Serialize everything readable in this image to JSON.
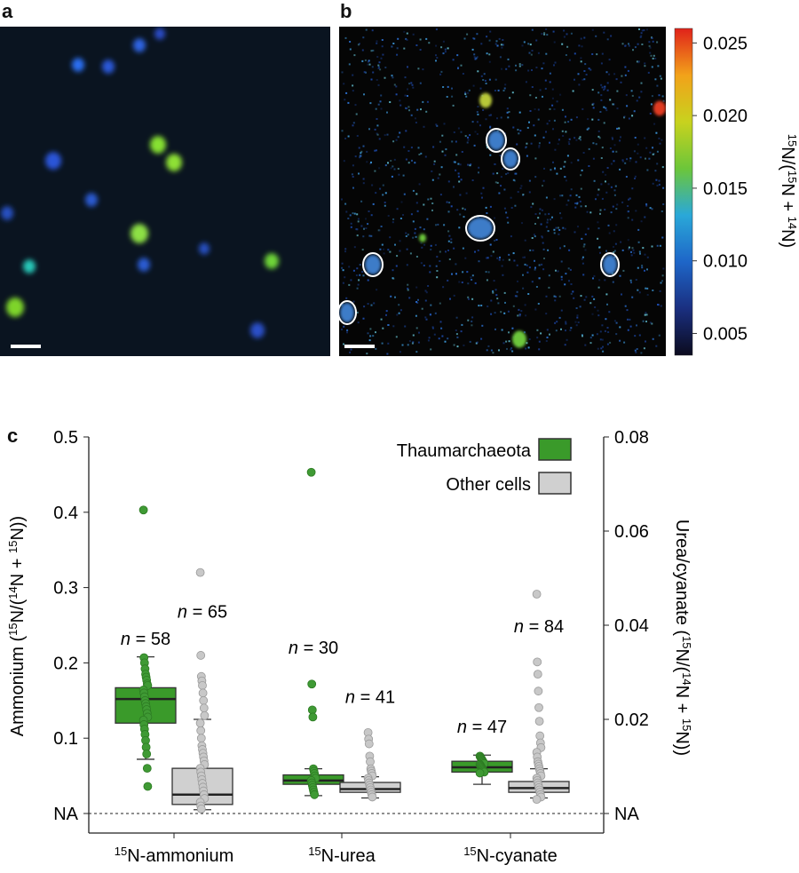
{
  "panel_labels": {
    "a": "a",
    "b": "b",
    "c": "c"
  },
  "colorbar": {
    "ticks": [
      "0.025",
      "0.020",
      "0.015",
      "0.010",
      "0.005"
    ],
    "tick_values": [
      0.025,
      0.02,
      0.015,
      0.01,
      0.005
    ],
    "range": [
      0.0035,
      0.026
    ],
    "label_parts": [
      "15",
      "N/(",
      "15",
      "N + ",
      "14",
      "N)"
    ],
    "colors": [
      "#0b0b1e",
      "#1a2f80",
      "#1e66c8",
      "#2aa8d8",
      "#6cc63a",
      "#c8d21e",
      "#f2a21a",
      "#e0221a"
    ]
  },
  "image_a": {
    "background": "#0a1420",
    "cells": [
      {
        "x": 17,
        "y": 346,
        "r": 10,
        "c": "#7ed42a"
      },
      {
        "x": 178,
        "y": 163,
        "r": 9,
        "c": "#86e030"
      },
      {
        "x": 196,
        "y": 183,
        "r": 9,
        "c": "#8ee036"
      },
      {
        "x": 157,
        "y": 263,
        "r": 10,
        "c": "#8de044"
      },
      {
        "x": 306,
        "y": 294,
        "r": 8,
        "c": "#6ed438"
      },
      {
        "x": 33,
        "y": 300,
        "r": 7,
        "c": "#28c8b8"
      },
      {
        "x": 88,
        "y": 73,
        "r": 7,
        "c": "#2b6ef2"
      },
      {
        "x": 122,
        "y": 75,
        "r": 7,
        "c": "#2a58d8"
      },
      {
        "x": 157,
        "y": 51,
        "r": 7,
        "c": "#2d63e2"
      },
      {
        "x": 60,
        "y": 181,
        "r": 9,
        "c": "#2a55d8"
      },
      {
        "x": 103,
        "y": 225,
        "r": 7,
        "c": "#2a5ad0"
      },
      {
        "x": 290,
        "y": 372,
        "r": 8,
        "c": "#2a4fc8"
      },
      {
        "x": 162,
        "y": 298,
        "r": 7,
        "c": "#2a5cd2"
      },
      {
        "x": 180,
        "y": 38,
        "r": 6,
        "c": "#2a4cc6"
      },
      {
        "x": 230,
        "y": 280,
        "r": 6,
        "c": "#2850c0"
      },
      {
        "x": 8,
        "y": 240,
        "r": 7,
        "c": "#2850c0"
      }
    ]
  },
  "image_b": {
    "background": "#050505",
    "outlined_cells": [
      {
        "x": 559,
        "y": 158,
        "rx": 9,
        "ry": 11
      },
      {
        "x": 575,
        "y": 179,
        "rx": 8,
        "ry": 10
      },
      {
        "x": 541,
        "y": 257,
        "rx": 14,
        "ry": 12
      },
      {
        "x": 420,
        "y": 298,
        "rx": 9,
        "ry": 11
      },
      {
        "x": 687,
        "y": 298,
        "rx": 8,
        "ry": 11
      },
      {
        "x": 391,
        "y": 352,
        "rx": 8,
        "ry": 11
      }
    ],
    "hot_spots": [
      {
        "x": 743,
        "y": 122,
        "r": 7,
        "c": "#e03a20"
      },
      {
        "x": 547,
        "y": 113,
        "r": 7,
        "c": "#b8c838"
      },
      {
        "x": 585,
        "y": 382,
        "r": 8,
        "c": "#6cc63a"
      },
      {
        "x": 476,
        "y": 268,
        "r": 4,
        "c": "#6cc63a"
      }
    ]
  },
  "chart_data": {
    "type": "box",
    "left_axis": {
      "label_parts": [
        "Ammonium (",
        "15",
        "N/(",
        "14",
        "N + ",
        "15",
        "N))"
      ],
      "ticks": [
        "0.5",
        "0.4",
        "0.3",
        "0.2",
        "0.1",
        "NA"
      ],
      "tick_values": [
        0.5,
        0.4,
        0.3,
        0.2,
        0.1,
        0.0
      ],
      "ylim": [
        0.0,
        0.5
      ]
    },
    "right_axis": {
      "label_parts": [
        "Urea/cyanate (",
        "15",
        "N/(",
        "14",
        "N + ",
        "15",
        "N))"
      ],
      "ticks": [
        "0.08",
        "0.06",
        "0.04",
        "0.02",
        "NA"
      ],
      "tick_values": [
        0.08,
        0.06,
        0.04,
        0.02,
        0.0
      ],
      "ylim": [
        0.0,
        0.08
      ]
    },
    "categories": [
      {
        "sup": "15",
        "label": "N-ammonium"
      },
      {
        "sup": "15",
        "label": "N-urea"
      },
      {
        "sup": "15",
        "label": "N-cyanate"
      }
    ],
    "series": [
      {
        "name": "Thaumarchaeota",
        "color": "#3a9a2a",
        "point_color": "#3f9a34"
      },
      {
        "name": "Other cells",
        "color": "#d0d0d0",
        "point_color": "#c8c8c8"
      }
    ],
    "boxes": [
      {
        "category": 0,
        "series": 0,
        "axis": "left",
        "n_label": "= 58",
        "n": 58,
        "whisker_low": 0.072,
        "q1": 0.12,
        "median": 0.152,
        "q3": 0.167,
        "whisker_high": 0.208,
        "points": [
          0.403,
          0.207,
          0.2,
          0.192,
          0.185,
          0.181,
          0.177,
          0.172,
          0.17,
          0.164,
          0.16,
          0.155,
          0.15,
          0.146,
          0.142,
          0.138,
          0.133,
          0.128,
          0.124,
          0.118,
          0.112,
          0.105,
          0.097,
          0.088,
          0.079,
          0.06,
          0.036
        ]
      },
      {
        "category": 0,
        "series": 1,
        "axis": "left",
        "n_label": "= 65",
        "n": 65,
        "whisker_low": 0.005,
        "q1": 0.012,
        "median": 0.025,
        "q3": 0.06,
        "whisker_high": 0.125,
        "points": [
          0.32,
          0.21,
          0.182,
          0.176,
          0.17,
          0.16,
          0.15,
          0.14,
          0.13,
          0.12,
          0.11,
          0.1,
          0.09,
          0.085,
          0.08,
          0.075,
          0.07,
          0.065,
          0.06,
          0.055,
          0.05,
          0.045,
          0.04,
          0.035,
          0.03,
          0.025,
          0.02,
          0.015,
          0.01,
          0.006
        ]
      },
      {
        "category": 1,
        "series": 0,
        "axis": "right",
        "n_label": "= 30",
        "n": 30,
        "whisker_low": 0.0038,
        "q1": 0.0062,
        "median": 0.007,
        "q3": 0.0082,
        "whisker_high": 0.0095,
        "points": [
          0.0725,
          0.0275,
          0.022,
          0.0205,
          0.0095,
          0.009,
          0.0085,
          0.008,
          0.0075,
          0.007,
          0.0065,
          0.006,
          0.0055,
          0.005,
          0.0045,
          0.004
        ]
      },
      {
        "category": 1,
        "series": 1,
        "axis": "right",
        "n_label": "= 41",
        "n": 41,
        "whisker_low": 0.0033,
        "q1": 0.0045,
        "median": 0.0052,
        "q3": 0.0066,
        "whisker_high": 0.0078,
        "points": [
          0.0172,
          0.0158,
          0.0148,
          0.0122,
          0.011,
          0.0095,
          0.009,
          0.0085,
          0.008,
          0.0075,
          0.007,
          0.0065,
          0.006,
          0.0055,
          0.005,
          0.0045,
          0.004,
          0.0035
        ]
      },
      {
        "category": 2,
        "series": 0,
        "axis": "right",
        "n_label": "= 47",
        "n": 47,
        "whisker_low": 0.0062,
        "q1": 0.0088,
        "median": 0.0098,
        "q3": 0.0111,
        "whisker_high": 0.0124,
        "points": [
          0.0122,
          0.012,
          0.0118,
          0.0116,
          0.0114,
          0.0112,
          0.011,
          0.0108,
          0.0106,
          0.0104,
          0.0102,
          0.01,
          0.0098,
          0.0096,
          0.0094,
          0.0092,
          0.009,
          0.0088,
          0.0086
        ]
      },
      {
        "category": 2,
        "series": 1,
        "axis": "right",
        "n_label": "= 84",
        "n": 84,
        "whisker_low": 0.0033,
        "q1": 0.0045,
        "median": 0.0054,
        "q3": 0.0068,
        "whisker_high": 0.0095,
        "points": [
          0.0466,
          0.0322,
          0.0296,
          0.026,
          0.0225,
          0.0196,
          0.0165,
          0.015,
          0.014,
          0.013,
          0.012,
          0.011,
          0.0105,
          0.01,
          0.0095,
          0.009,
          0.0085,
          0.008,
          0.0075,
          0.007,
          0.0065,
          0.006,
          0.0055,
          0.005,
          0.0045,
          0.004,
          0.0035,
          0.003
        ]
      }
    ],
    "legend_position": "top-right",
    "na_line": "dashed"
  }
}
